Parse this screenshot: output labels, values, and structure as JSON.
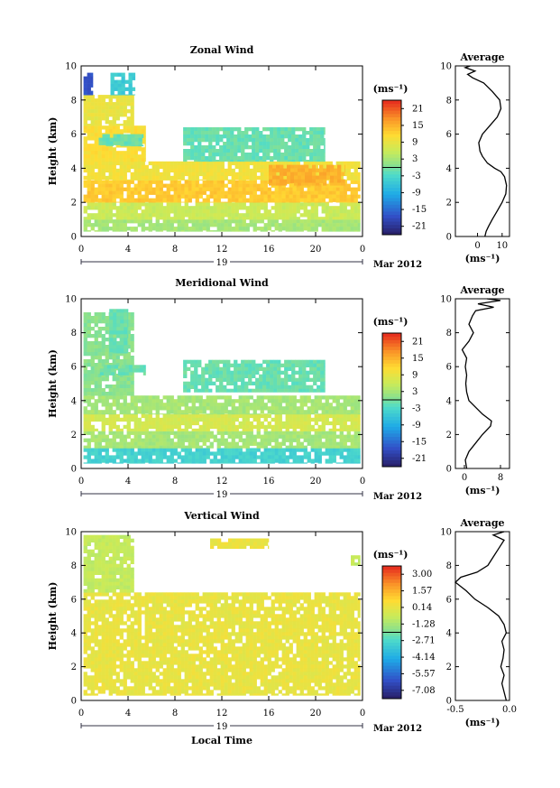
{
  "chart_data": [
    {
      "type": "heatmap",
      "title": "Zonal Wind",
      "xlabel": "",
      "ylabel": "Height (km)",
      "xlim": [
        0,
        24
      ],
      "ylim": [
        0,
        10
      ],
      "xticks": [
        "0",
        "4",
        "8",
        "12",
        "16",
        "20",
        "0"
      ],
      "yticks": [
        "0",
        "2",
        "4",
        "6",
        "8",
        "10"
      ],
      "date_label": "19",
      "month_label": "Mar 2012",
      "colorbar": {
        "unit": "(ms⁻¹)",
        "ticks": [
          "-21",
          "-15",
          "-9",
          "-3",
          "3",
          "9",
          "15",
          "21"
        ],
        "range": [
          -24,
          24
        ]
      },
      "average": {
        "title": "Average",
        "unit": "(ms⁻¹)",
        "xlim": [
          -9,
          13
        ],
        "xticks": [
          "0",
          "10"
        ],
        "profile": [
          [
            0.0,
            3.0
          ],
          [
            0.3,
            3.5
          ],
          [
            0.6,
            4.5
          ],
          [
            1.0,
            6.0
          ],
          [
            1.5,
            8.0
          ],
          [
            2.0,
            10.0
          ],
          [
            2.5,
            11.5
          ],
          [
            3.0,
            11.8
          ],
          [
            3.5,
            11.0
          ],
          [
            3.8,
            9.5
          ],
          [
            4.0,
            7.0
          ],
          [
            4.3,
            4.0
          ],
          [
            4.7,
            2.0
          ],
          [
            5.0,
            1.0
          ],
          [
            5.5,
            0.5
          ],
          [
            6.0,
            2.0
          ],
          [
            6.5,
            5.0
          ],
          [
            7.0,
            8.0
          ],
          [
            7.5,
            9.5
          ],
          [
            8.0,
            9.0
          ],
          [
            8.5,
            6.0
          ],
          [
            9.0,
            2.5
          ],
          [
            9.3,
            -2.0
          ],
          [
            9.5,
            -4.0
          ],
          [
            9.7,
            -1.0
          ],
          [
            9.9,
            -5.0
          ],
          [
            10.0,
            -3.0
          ]
        ]
      },
      "regions": [
        {
          "t0": 0.2,
          "t1": 23.8,
          "h0": 0.3,
          "h1": 1.0,
          "value": 3
        },
        {
          "t0": 0.2,
          "t1": 23.8,
          "h0": 1.0,
          "h1": 2.0,
          "value": 6
        },
        {
          "t0": 0.2,
          "t1": 23.8,
          "h0": 2.0,
          "h1": 3.3,
          "value": 13
        },
        {
          "t0": 0.2,
          "t1": 23.8,
          "h0": 3.3,
          "h1": 4.4,
          "value": 10
        },
        {
          "t0": 0.2,
          "t1": 5.5,
          "h0": 4.4,
          "h1": 6.5,
          "value": 11
        },
        {
          "t0": 0.2,
          "t1": 4.5,
          "h0": 6.5,
          "h1": 8.3,
          "value": 9
        },
        {
          "t0": 0.2,
          "t1": 1.0,
          "h0": 8.3,
          "h1": 9.6,
          "value": -17
        },
        {
          "t0": 2.5,
          "t1": 4.6,
          "h0": 8.3,
          "h1": 9.6,
          "value": -5
        },
        {
          "t0": 16.0,
          "t1": 22.5,
          "h0": 3.0,
          "h1": 4.2,
          "value": 15
        },
        {
          "t0": 8.7,
          "t1": 20.8,
          "h0": 4.4,
          "h1": 6.4,
          "value": -1
        },
        {
          "t0": 1.5,
          "t1": 5.3,
          "h0": 5.3,
          "h1": 6.0,
          "value": -1
        }
      ]
    },
    {
      "type": "heatmap",
      "title": "Meridional Wind",
      "xlabel": "",
      "ylabel": "Height (km)",
      "xlim": [
        0,
        24
      ],
      "ylim": [
        0,
        10
      ],
      "xticks": [
        "0",
        "4",
        "8",
        "12",
        "16",
        "20",
        "0"
      ],
      "yticks": [
        "0",
        "2",
        "4",
        "6",
        "8",
        "10"
      ],
      "date_label": "19",
      "month_label": "Mar 2012",
      "colorbar": {
        "unit": "(ms⁻¹)",
        "ticks": [
          "-21",
          "-15",
          "-9",
          "-3",
          "3",
          "9",
          "15",
          "21"
        ],
        "range": [
          -24,
          24
        ]
      },
      "average": {
        "title": "Average",
        "unit": "(ms⁻¹)",
        "xlim": [
          -2,
          10
        ],
        "xticks": [
          "0",
          "8"
        ],
        "profile": [
          [
            0.0,
            0.5
          ],
          [
            0.5,
            0.2
          ],
          [
            1.0,
            1.0
          ],
          [
            1.5,
            2.5
          ],
          [
            2.0,
            4.0
          ],
          [
            2.5,
            5.8
          ],
          [
            2.8,
            6.0
          ],
          [
            3.2,
            4.0
          ],
          [
            3.6,
            2.5
          ],
          [
            4.0,
            1.0
          ],
          [
            4.5,
            0.5
          ],
          [
            5.0,
            0.3
          ],
          [
            5.5,
            0.5
          ],
          [
            6.0,
            0.2
          ],
          [
            6.5,
            0.5
          ],
          [
            7.0,
            -0.5
          ],
          [
            7.5,
            1.0
          ],
          [
            8.0,
            2.0
          ],
          [
            8.5,
            1.0
          ],
          [
            9.0,
            1.8
          ],
          [
            9.3,
            2.5
          ],
          [
            9.5,
            6.5
          ],
          [
            9.7,
            3.0
          ],
          [
            9.9,
            8.0
          ],
          [
            10.0,
            5.0
          ]
        ]
      },
      "regions": [
        {
          "t0": 0.2,
          "t1": 23.8,
          "h0": 0.3,
          "h1": 1.2,
          "value": -4
        },
        {
          "t0": 0.2,
          "t1": 23.8,
          "h0": 1.2,
          "h1": 2.2,
          "value": 3
        },
        {
          "t0": 0.2,
          "t1": 23.8,
          "h0": 2.2,
          "h1": 3.2,
          "value": 7
        },
        {
          "t0": 0.2,
          "t1": 23.8,
          "h0": 3.2,
          "h1": 4.3,
          "value": 3
        },
        {
          "t0": 0.2,
          "t1": 4.5,
          "h0": 4.3,
          "h1": 9.2,
          "value": 1
        },
        {
          "t0": 8.7,
          "t1": 20.8,
          "h0": 4.5,
          "h1": 6.4,
          "value": -1
        },
        {
          "t0": 1.6,
          "t1": 5.5,
          "h0": 5.5,
          "h1": 6.1,
          "value": -1
        },
        {
          "t0": 2.4,
          "t1": 4.0,
          "h0": 6.8,
          "h1": 9.4,
          "value": -1
        }
      ]
    },
    {
      "type": "heatmap",
      "title": "Vertical Wind",
      "xlabel": "Local Time",
      "ylabel": "Height (km)",
      "xlim": [
        0,
        24
      ],
      "ylim": [
        0,
        10
      ],
      "xticks": [
        "0",
        "4",
        "8",
        "12",
        "16",
        "20",
        "0"
      ],
      "yticks": [
        "0",
        "2",
        "4",
        "6",
        "8",
        "10"
      ],
      "date_label": "19",
      "month_label": "Mar 2012",
      "colorbar": {
        "unit": "(ms⁻¹)",
        "ticks": [
          "-7.08",
          "-5.57",
          "-4.14",
          "-2.71",
          "-1.28",
          "0.14",
          "1.57",
          "3.00"
        ],
        "range": [
          -8.5,
          4.4
        ]
      },
      "average": {
        "title": "Average",
        "unit": "(ms⁻¹)",
        "xlim": [
          -0.5,
          0.0
        ],
        "xticks": [
          "-0.5",
          "0.0"
        ],
        "profile": [
          [
            0.0,
            -0.03
          ],
          [
            0.5,
            -0.05
          ],
          [
            1.0,
            -0.07
          ],
          [
            1.5,
            -0.05
          ],
          [
            2.0,
            -0.08
          ],
          [
            2.5,
            -0.06
          ],
          [
            3.0,
            -0.05
          ],
          [
            3.5,
            -0.07
          ],
          [
            4.0,
            -0.03
          ],
          [
            4.5,
            -0.05
          ],
          [
            5.0,
            -0.1
          ],
          [
            5.5,
            -0.2
          ],
          [
            6.0,
            -0.32
          ],
          [
            6.5,
            -0.4
          ],
          [
            7.0,
            -0.5
          ],
          [
            7.3,
            -0.45
          ],
          [
            7.6,
            -0.3
          ],
          [
            8.0,
            -0.2
          ],
          [
            8.5,
            -0.15
          ],
          [
            9.0,
            -0.1
          ],
          [
            9.5,
            -0.05
          ],
          [
            9.8,
            -0.15
          ],
          [
            10.0,
            -0.05
          ]
        ]
      },
      "regions": [
        {
          "t0": 0.2,
          "t1": 23.8,
          "h0": 0.3,
          "h1": 6.4,
          "value": 0.4
        },
        {
          "t0": 0.2,
          "t1": 4.5,
          "h0": 6.4,
          "h1": 9.8,
          "value": -0.6
        },
        {
          "t0": 11.0,
          "t1": 16.0,
          "h0": 9.0,
          "h1": 9.6,
          "value": 0.5
        },
        {
          "t0": 23.0,
          "t1": 23.8,
          "h0": 8.0,
          "h1": 8.6,
          "value": -0.6
        }
      ]
    }
  ]
}
